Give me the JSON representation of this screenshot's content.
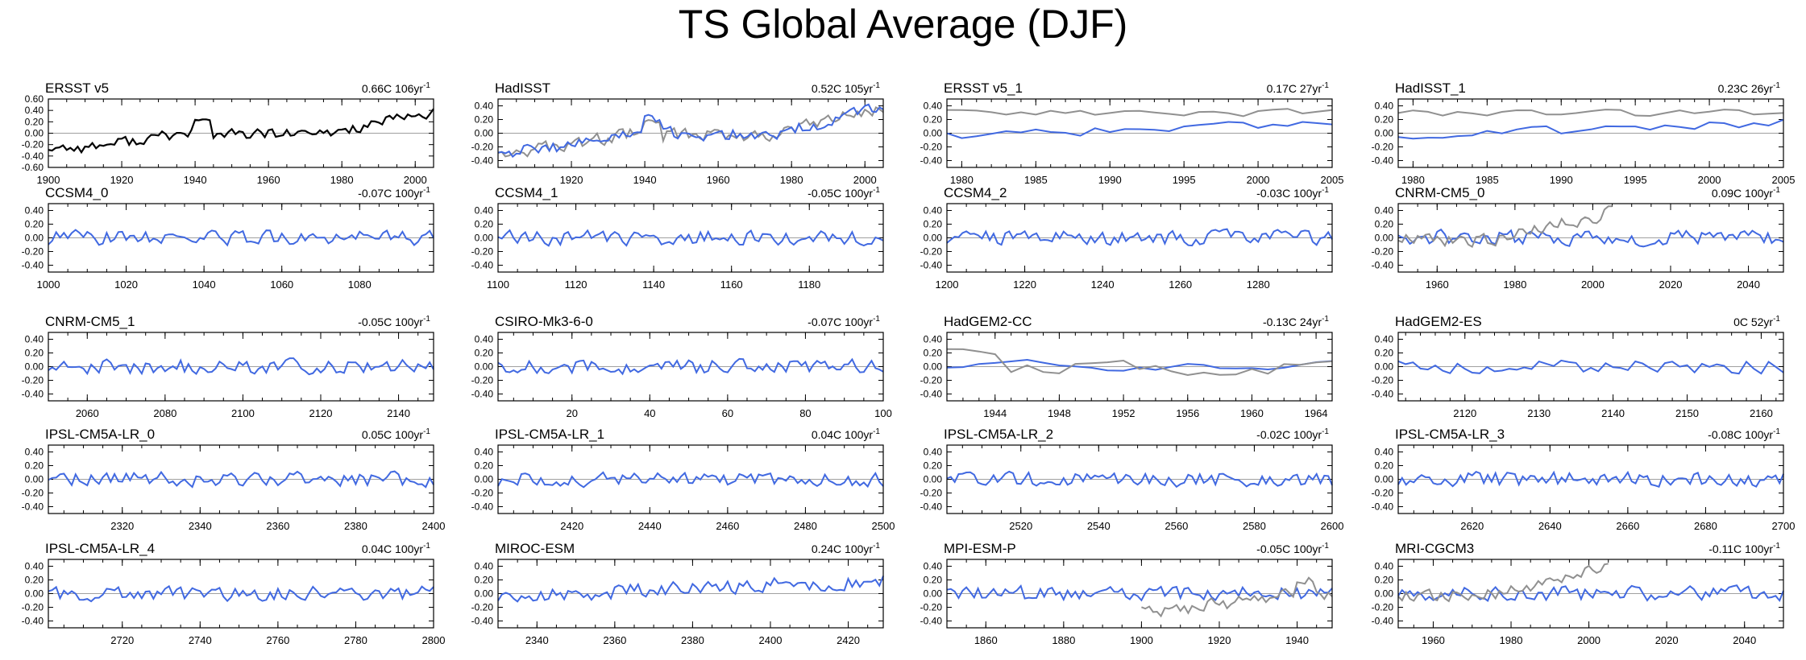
{
  "figure": {
    "title": "TS Global Average (DJF)",
    "ylim": [
      -0.6,
      0.6
    ],
    "colors": {
      "model": "#4169e1",
      "obs_overlay": "#909090",
      "obs_primary": "#000000",
      "zero_line": "#a0a0a0",
      "axis": "#000000"
    }
  },
  "chart_data": [
    {
      "type": "line",
      "title": "ERSST v5",
      "trend": "0.66C 106yr",
      "trend_sup": "-1",
      "kind": "obs",
      "x_start": 1900,
      "x_end": 2005,
      "xticks": [
        1900,
        1920,
        1940,
        1960,
        1980,
        2000
      ],
      "yticks": [
        "0.60",
        "0.40",
        "0.20",
        "0.00",
        "-0.20",
        "-0.40",
        "-0.60"
      ],
      "ylim": [
        -0.6,
        0.6
      ]
    },
    {
      "type": "line",
      "title": "HadISST",
      "trend": "0.52C 105yr",
      "trend_sup": "-1",
      "kind": "obs_overlay",
      "x_start": 1900,
      "x_end": 2005,
      "xticks": [
        1920,
        1940,
        1960,
        1980,
        2000
      ],
      "yticks": [
        "0.40",
        "0.20",
        "0.00",
        "-0.20",
        "-0.40"
      ],
      "ylim": [
        -0.5,
        0.5
      ],
      "overlay_start": 1900
    },
    {
      "type": "line",
      "title": "ERSST v5_1",
      "trend": "0.17C 27yr",
      "trend_sup": "-1",
      "kind": "obs_overlay",
      "x_start": 1979,
      "x_end": 2005,
      "xticks": [
        1980,
        1985,
        1990,
        1995,
        2000,
        2005
      ],
      "yticks": [
        "0.40",
        "0.20",
        "0.00",
        "-0.20",
        "-0.40"
      ],
      "ylim": [
        -0.5,
        0.5
      ],
      "overlay_start": 1979
    },
    {
      "type": "line",
      "title": "HadISST_1",
      "trend": "0.23C 26yr",
      "trend_sup": "-1",
      "kind": "obs_overlay",
      "x_start": 1979,
      "x_end": 2005,
      "xticks": [
        1980,
        1985,
        1990,
        1995,
        2000,
        2005
      ],
      "yticks": [
        "0.40",
        "0.20",
        "0.00",
        "-0.20",
        "-0.40"
      ],
      "ylim": [
        -0.5,
        0.5
      ],
      "overlay_start": 1979
    },
    {
      "type": "line",
      "title": "CCSM4_0",
      "trend": "-0.07C 100yr",
      "trend_sup": "-1",
      "kind": "model",
      "x_start": 1000,
      "x_end": 1099,
      "xticks": [
        1000,
        1020,
        1040,
        1060,
        1080
      ],
      "yticks": [
        "0.40",
        "0.20",
        "0.00",
        "-0.20",
        "-0.40"
      ],
      "ylim": [
        -0.5,
        0.5
      ]
    },
    {
      "type": "line",
      "title": "CCSM4_1",
      "trend": "-0.05C 100yr",
      "trend_sup": "-1",
      "kind": "model",
      "x_start": 1100,
      "x_end": 1199,
      "xticks": [
        1100,
        1120,
        1140,
        1160,
        1180
      ],
      "yticks": [
        "0.40",
        "0.20",
        "0.00",
        "-0.20",
        "-0.40"
      ],
      "ylim": [
        -0.5,
        0.5
      ]
    },
    {
      "type": "line",
      "title": "CCSM4_2",
      "trend": "-0.03C 100yr",
      "trend_sup": "-1",
      "kind": "model",
      "x_start": 1200,
      "x_end": 1299,
      "xticks": [
        1200,
        1220,
        1240,
        1260,
        1280
      ],
      "yticks": [
        "0.40",
        "0.20",
        "0.00",
        "-0.20",
        "-0.40"
      ],
      "ylim": [
        -0.5,
        0.5
      ]
    },
    {
      "type": "line",
      "title": "CNRM-CM5_0",
      "trend": "0.09C 100yr",
      "trend_sup": "-1",
      "kind": "model_overlay",
      "x_start": 1950,
      "x_end": 2049,
      "xticks": [
        1960,
        1980,
        2000,
        2020,
        2040
      ],
      "yticks": [
        "0.40",
        "0.20",
        "0.00",
        "-0.20",
        "-0.40"
      ],
      "ylim": [
        -0.5,
        0.5
      ]
    },
    {
      "type": "line",
      "title": "CNRM-CM5_1",
      "trend": "-0.05C 100yr",
      "trend_sup": "-1",
      "kind": "model",
      "x_start": 2050,
      "x_end": 2149,
      "xticks": [
        2060,
        2080,
        2100,
        2120,
        2140
      ],
      "yticks": [
        "0.40",
        "0.20",
        "0.00",
        "-0.20",
        "-0.40"
      ],
      "ylim": [
        -0.5,
        0.5
      ]
    },
    {
      "type": "line",
      "title": "CSIRO-Mk3-6-0",
      "trend": "-0.07C 100yr",
      "trend_sup": "-1",
      "kind": "model",
      "x_start": 1,
      "x_end": 100,
      "xticks": [
        20,
        40,
        60,
        80,
        100
      ],
      "yticks": [
        "0.40",
        "0.20",
        "0.00",
        "-0.20",
        "-0.40"
      ],
      "ylim": [
        -0.5,
        0.5
      ]
    },
    {
      "type": "line",
      "title": "HadGEM2-CC",
      "trend": "-0.13C 24yr",
      "trend_sup": "-1",
      "kind": "model_overlay_short",
      "x_start": 1941,
      "x_end": 1965,
      "xticks": [
        1944,
        1948,
        1952,
        1956,
        1960,
        1964
      ],
      "yticks": [
        "0.40",
        "0.20",
        "0.00",
        "-0.20",
        "-0.40"
      ],
      "ylim": [
        -0.5,
        0.5
      ]
    },
    {
      "type": "line",
      "title": "HadGEM2-ES",
      "trend": "0C 52yr",
      "trend_sup": "-1",
      "kind": "model",
      "x_start": 2111,
      "x_end": 2163,
      "xticks": [
        2120,
        2130,
        2140,
        2150,
        2160
      ],
      "yticks": [
        "0.40",
        "0.20",
        "0.00",
        "-0.20",
        "-0.40"
      ],
      "ylim": [
        -0.5,
        0.5
      ]
    },
    {
      "type": "line",
      "title": "IPSL-CM5A-LR_0",
      "trend": "0.05C 100yr",
      "trend_sup": "-1",
      "kind": "model",
      "x_start": 2301,
      "x_end": 2400,
      "xticks": [
        2320,
        2340,
        2360,
        2380,
        2400
      ],
      "yticks": [
        "0.40",
        "0.20",
        "0.00",
        "-0.20",
        "-0.40"
      ],
      "ylim": [
        -0.5,
        0.5
      ]
    },
    {
      "type": "line",
      "title": "IPSL-CM5A-LR_1",
      "trend": "0.04C 100yr",
      "trend_sup": "-1",
      "kind": "model",
      "x_start": 2401,
      "x_end": 2500,
      "xticks": [
        2420,
        2440,
        2460,
        2480,
        2500
      ],
      "yticks": [
        "0.40",
        "0.20",
        "0.00",
        "-0.20",
        "-0.40"
      ],
      "ylim": [
        -0.5,
        0.5
      ]
    },
    {
      "type": "line",
      "title": "IPSL-CM5A-LR_2",
      "trend": "-0.02C 100yr",
      "trend_sup": "-1",
      "kind": "model",
      "x_start": 2501,
      "x_end": 2600,
      "xticks": [
        2520,
        2540,
        2560,
        2580,
        2600
      ],
      "yticks": [
        "0.40",
        "0.20",
        "0.00",
        "-0.20",
        "-0.40"
      ],
      "ylim": [
        -0.5,
        0.5
      ]
    },
    {
      "type": "line",
      "title": "IPSL-CM5A-LR_3",
      "trend": "-0.08C 100yr",
      "trend_sup": "-1",
      "kind": "model",
      "x_start": 2601,
      "x_end": 2700,
      "xticks": [
        2620,
        2640,
        2660,
        2680,
        2700
      ],
      "yticks": [
        "0.40",
        "0.20",
        "0.00",
        "-0.20",
        "-0.40"
      ],
      "ylim": [
        -0.5,
        0.5
      ]
    },
    {
      "type": "line",
      "title": "IPSL-CM5A-LR_4",
      "trend": "0.04C 100yr",
      "trend_sup": "-1",
      "kind": "model",
      "x_start": 2701,
      "x_end": 2800,
      "xticks": [
        2720,
        2740,
        2760,
        2780,
        2800
      ],
      "yticks": [
        "0.40",
        "0.20",
        "0.00",
        "-0.20",
        "-0.40"
      ],
      "ylim": [
        -0.5,
        0.5
      ]
    },
    {
      "type": "line",
      "title": "MIROC-ESM",
      "trend": "0.24C 100yr",
      "trend_sup": "-1",
      "kind": "model",
      "x_start": 2330,
      "x_end": 2429,
      "xticks": [
        2340,
        2360,
        2380,
        2400,
        2420
      ],
      "yticks": [
        "0.40",
        "0.20",
        "0.00",
        "-0.20",
        "-0.40"
      ],
      "ylim": [
        -0.5,
        0.5
      ]
    },
    {
      "type": "line",
      "title": "MPI-ESM-P",
      "trend": "-0.05C 100yr",
      "trend_sup": "-1",
      "kind": "model_overlay",
      "x_start": 1850,
      "x_end": 1949,
      "xticks": [
        1860,
        1880,
        1900,
        1920,
        1940
      ],
      "yticks": [
        "0.40",
        "0.20",
        "0.00",
        "-0.20",
        "-0.40"
      ],
      "ylim": [
        -0.5,
        0.5
      ]
    },
    {
      "type": "line",
      "title": "MRI-CGCM3",
      "trend": "-0.11C 100yr",
      "trend_sup": "-1",
      "kind": "model_overlay",
      "x_start": 1951,
      "x_end": 2050,
      "xticks": [
        1960,
        1980,
        2000,
        2020,
        2040
      ],
      "yticks": [
        "0.40",
        "0.20",
        "0.00",
        "-0.20",
        "-0.40"
      ],
      "ylim": [
        -0.5,
        0.5
      ]
    }
  ]
}
